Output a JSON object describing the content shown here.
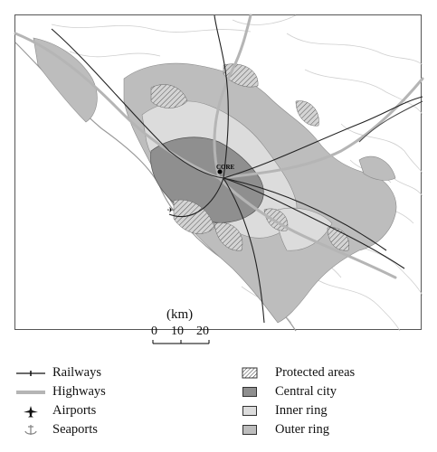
{
  "map": {
    "city_label": "CORE",
    "scale": {
      "unit": "(km)",
      "ticks": [
        "0",
        "10",
        "20"
      ]
    }
  },
  "legend": {
    "left": [
      {
        "label": "Railways",
        "icon": "railway-line"
      },
      {
        "label": "Highways",
        "icon": "highway-line"
      },
      {
        "label": "Airports",
        "icon": "airplane-icon"
      },
      {
        "label": "Seaports",
        "icon": "anchor-icon"
      }
    ],
    "right": [
      {
        "label": "Protected areas",
        "icon": "hatched-swatch"
      },
      {
        "label": "Central city",
        "icon": "dark-grey-swatch",
        "color": "#8f8f8f"
      },
      {
        "label": "Inner ring",
        "icon": "light-grey-swatch",
        "color": "#dcdcdc"
      },
      {
        "label": "Outer ring",
        "icon": "mid-grey-swatch",
        "color": "#bdbdbd"
      }
    ]
  },
  "colors": {
    "central_city": "#8f8f8f",
    "inner_ring": "#dcdcdc",
    "outer_ring": "#bdbdbd",
    "highway": "#b5b5b5",
    "contour": "#cfcfcf"
  }
}
